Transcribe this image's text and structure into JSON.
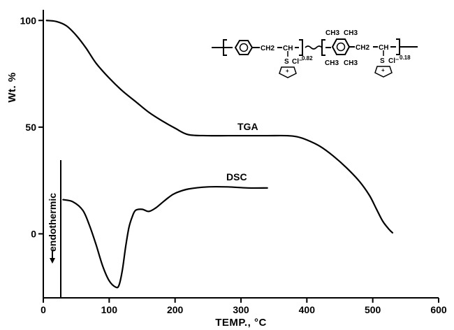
{
  "chart_data": {
    "type": "line",
    "title": "",
    "xlabel": "TEMP., °C",
    "ylabel": "Wt. %",
    "xlim": [
      0,
      600
    ],
    "ylim": [
      -30,
      105
    ],
    "x_ticks": [
      0,
      100,
      200,
      300,
      400,
      500,
      600
    ],
    "y_ticks": [
      0,
      50,
      100
    ],
    "grid": false,
    "series": [
      {
        "name": "TGA",
        "x": [
          5,
          20,
          35,
          50,
          65,
          80,
          100,
          120,
          140,
          160,
          180,
          200,
          220,
          250,
          280,
          310,
          340,
          370,
          385,
          400,
          420,
          440,
          460,
          480,
          495,
          505,
          515,
          525,
          530
        ],
        "y": [
          100,
          99.5,
          97.5,
          93,
          87,
          80,
          73,
          67,
          62,
          57,
          53,
          49.5,
          46.5,
          46,
          46,
          46,
          46,
          46,
          45.5,
          44,
          41,
          36.5,
          31,
          24.5,
          18,
          12,
          6,
          2,
          0.5
        ]
      },
      {
        "name": "DSC",
        "x": [
          30,
          45,
          60,
          70,
          80,
          90,
          100,
          110,
          115,
          120,
          125,
          130,
          135,
          140,
          150,
          160,
          170,
          180,
          190,
          200,
          220,
          250,
          280,
          310,
          340
        ],
        "y": [
          16,
          15,
          11,
          4,
          -5,
          -15,
          -22,
          -25,
          -24,
          -17,
          -6,
          3,
          8,
          11,
          11.5,
          10.5,
          12,
          14.5,
          17,
          19,
          21,
          22,
          22,
          21.5,
          21.5
        ]
      }
    ],
    "annotations": {
      "endothermic": "endothermic",
      "structure": {
        "unit1_group": "CH2",
        "unit1_ch": "CH",
        "unit1_sub": "0.82",
        "unit2_me": "CH3",
        "unit2_group": "CH2",
        "unit2_ch": "CH",
        "unit2_sub": "0.18",
        "counterion": "Cl⁻",
        "plus": "+",
        "s": "S"
      }
    }
  }
}
